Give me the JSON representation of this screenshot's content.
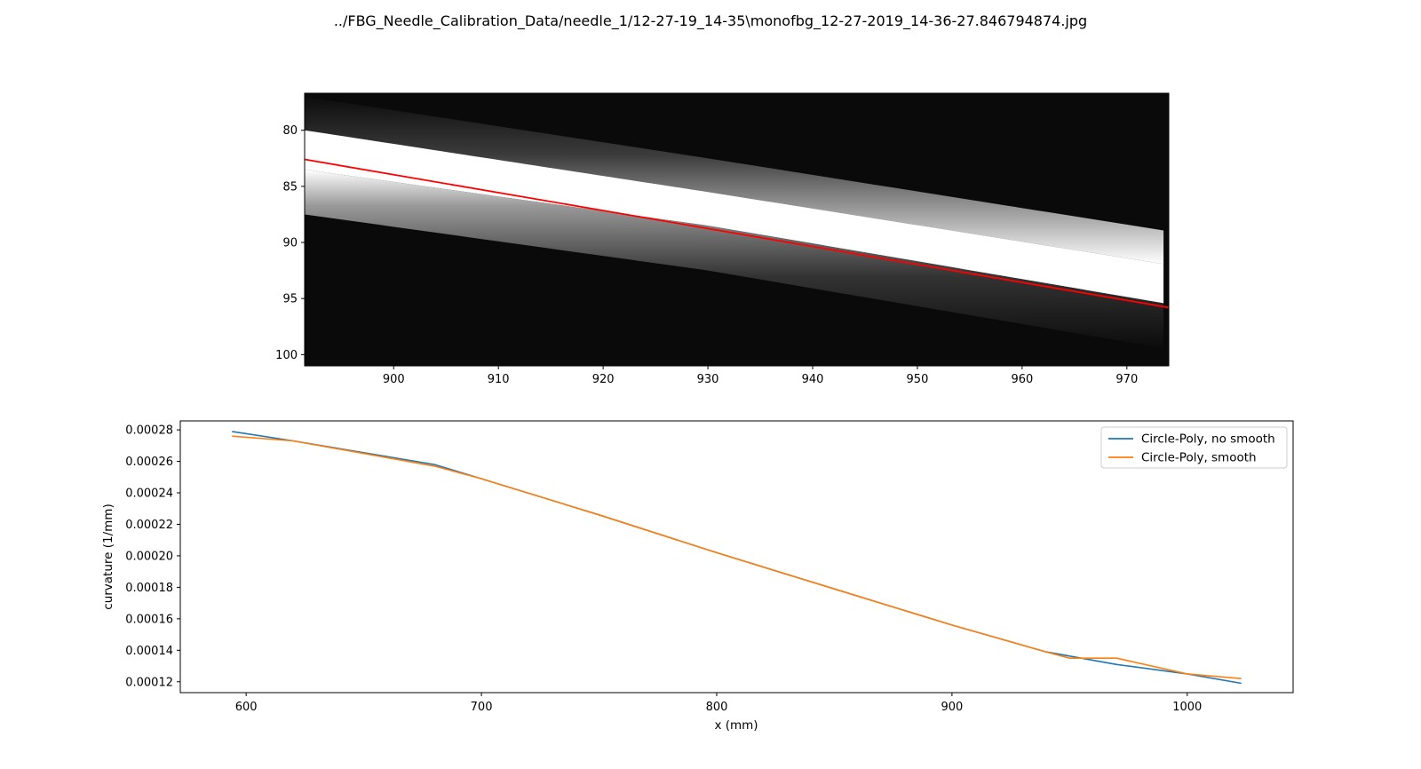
{
  "figure_title": "../FBG_Needle_Calibration_Data/needle_1/12-27-19_14-35\\monofbg_12-27-2019_14-36-27.846794874.jpg",
  "chart_data": [
    {
      "type": "heatmap",
      "title": "",
      "xlabel": "",
      "ylabel": "",
      "xlim": [
        891.5,
        974
      ],
      "ylim": [
        101,
        76.7
      ],
      "y_inverted": true,
      "xticks": [
        900,
        910,
        920,
        930,
        940,
        950,
        960,
        970
      ],
      "yticks": [
        80,
        85,
        90,
        95,
        100
      ],
      "colormap": "gray",
      "description_bright_band": {
        "upper_edge": [
          [
            891.5,
            80
          ],
          [
            930,
            85.5
          ],
          [
            974,
            92
          ]
        ],
        "lower_edge": [
          [
            891.5,
            86
          ],
          [
            930,
            91
          ],
          [
            974,
            98
          ]
        ]
      },
      "fit_line": {
        "color": "#ff0000",
        "points": [
          [
            891.5,
            82.6
          ],
          [
            974,
            95.8
          ]
        ]
      }
    },
    {
      "type": "line",
      "title": "",
      "xlabel": "x (mm)",
      "ylabel": "curvature (1/mm)",
      "xlim": [
        572,
        1045
      ],
      "ylim": [
        0.0001131,
        0.0002857
      ],
      "xticks": [
        600,
        700,
        800,
        900,
        1000
      ],
      "yticks": [
        0.00012,
        0.00014,
        0.00016,
        0.00018,
        0.0002,
        0.00022,
        0.00024,
        0.00026,
        0.00028
      ],
      "ytick_labels": [
        "0.00012",
        "0.00014",
        "0.00016",
        "0.00018",
        "0.00020",
        "0.00022",
        "0.00024",
        "0.00026",
        "0.00028"
      ],
      "xtick_labels": [
        "600",
        "700",
        "800",
        "900",
        "1000"
      ],
      "legend_position": "top-right",
      "series": [
        {
          "name": "Circle-Poly, no smooth",
          "color": "#1f77b4",
          "x": [
            594,
            620,
            680,
            700,
            750,
            800,
            850,
            900,
            940,
            970,
            1000,
            1023
          ],
          "y": [
            0.000279,
            0.000273,
            0.000258,
            0.000249,
            0.000226,
            0.000202,
            0.000179,
            0.000156,
            0.000139,
            0.000131,
            0.000125,
            0.000119
          ]
        },
        {
          "name": "Circle-Poly, smooth",
          "color": "#ff7f0e",
          "x": [
            594,
            620,
            680,
            700,
            750,
            800,
            850,
            900,
            940,
            950,
            970,
            1000,
            1023
          ],
          "y": [
            0.000276,
            0.000273,
            0.000257,
            0.000249,
            0.000226,
            0.000202,
            0.000179,
            0.000156,
            0.000139,
            0.000135,
            0.000135,
            0.000125,
            0.000122
          ]
        }
      ]
    }
  ]
}
